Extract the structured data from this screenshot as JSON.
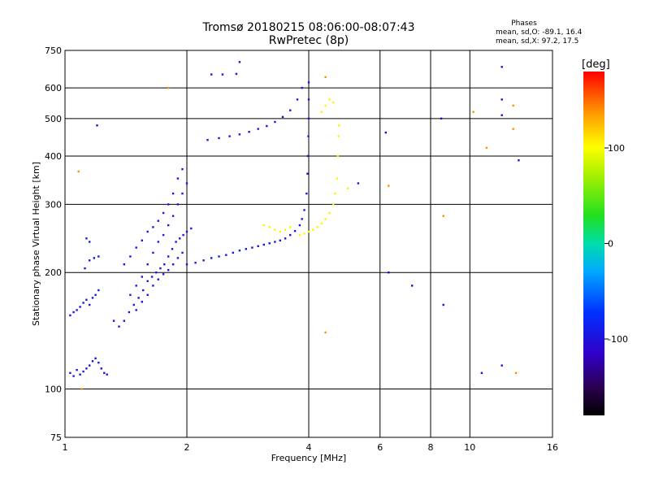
{
  "chart_data": {
    "type": "scatter",
    "title": "Tromsø 20180215 08:06:00-08:07:43",
    "subtitle": "RwPretec (8p)",
    "xlabel": "Frequency [MHz]",
    "ylabel": "Stationary phase Virtual Height [km]",
    "x_scale": "log",
    "y_scale": "log",
    "xlim": [
      1,
      16
    ],
    "ylim": [
      75,
      750
    ],
    "x_ticks": [
      1,
      2,
      4,
      6,
      8,
      10,
      16
    ],
    "x_tick_labels": [
      "1",
      "2",
      "4",
      "6",
      "8",
      "10",
      "16"
    ],
    "y_ticks": [
      75,
      100,
      200,
      300,
      400,
      500,
      600,
      750
    ],
    "y_tick_labels": [
      "75",
      "100",
      "200",
      "300",
      "400",
      "500",
      "600",
      "750"
    ],
    "grid": true,
    "phase_stats": {
      "heading": "Phases",
      "line_o": "mean, sd,O: -89.1, 16.4",
      "line_x": "mean, sd,X:  97.2, 17.5"
    },
    "colorbar": {
      "unit_label": "[deg]",
      "range": [
        -180,
        180
      ],
      "ticks": [
        100,
        0,
        -100
      ],
      "tick_labels": [
        "100",
        "0",
        "-100"
      ]
    },
    "series": [
      {
        "mode": "O",
        "phase_deg": -95,
        "points": [
          [
            1.03,
            110
          ],
          [
            1.05,
            108
          ],
          [
            1.07,
            112
          ],
          [
            1.09,
            109
          ],
          [
            1.11,
            111
          ],
          [
            1.13,
            113
          ],
          [
            1.15,
            115
          ],
          [
            1.17,
            118
          ],
          [
            1.19,
            120
          ],
          [
            1.21,
            117
          ],
          [
            1.23,
            113
          ],
          [
            1.25,
            110
          ],
          [
            1.27,
            109
          ],
          [
            1.03,
            155
          ],
          [
            1.05,
            158
          ],
          [
            1.07,
            160
          ],
          [
            1.09,
            163
          ],
          [
            1.11,
            167
          ],
          [
            1.13,
            170
          ],
          [
            1.15,
            165
          ],
          [
            1.17,
            172
          ],
          [
            1.19,
            175
          ],
          [
            1.21,
            180
          ],
          [
            1.12,
            205
          ],
          [
            1.15,
            215
          ],
          [
            1.18,
            218
          ],
          [
            1.21,
            220
          ],
          [
            1.13,
            245
          ],
          [
            1.15,
            240
          ],
          [
            1.32,
            150
          ],
          [
            1.36,
            145
          ],
          [
            1.4,
            150
          ],
          [
            1.44,
            158
          ],
          [
            1.48,
            165
          ],
          [
            1.52,
            172
          ],
          [
            1.56,
            180
          ],
          [
            1.6,
            190
          ],
          [
            1.64,
            195
          ],
          [
            1.68,
            200
          ],
          [
            1.72,
            205
          ],
          [
            1.76,
            210
          ],
          [
            1.8,
            220
          ],
          [
            1.84,
            230
          ],
          [
            1.88,
            240
          ],
          [
            1.92,
            245
          ],
          [
            1.96,
            250
          ],
          [
            2.0,
            255
          ],
          [
            2.05,
            260
          ],
          [
            1.45,
            175
          ],
          [
            1.5,
            185
          ],
          [
            1.55,
            195
          ],
          [
            1.6,
            210
          ],
          [
            1.65,
            225
          ],
          [
            1.7,
            240
          ],
          [
            1.75,
            250
          ],
          [
            1.8,
            265
          ],
          [
            1.85,
            280
          ],
          [
            1.9,
            300
          ],
          [
            1.95,
            320
          ],
          [
            2.0,
            340
          ],
          [
            1.4,
            210
          ],
          [
            1.45,
            220
          ],
          [
            1.5,
            232
          ],
          [
            1.55,
            242
          ],
          [
            1.6,
            255
          ],
          [
            1.65,
            262
          ],
          [
            1.7,
            272
          ],
          [
            1.75,
            285
          ],
          [
            1.8,
            300
          ],
          [
            1.85,
            320
          ],
          [
            1.9,
            350
          ],
          [
            1.95,
            370
          ],
          [
            1.5,
            160
          ],
          [
            1.55,
            168
          ],
          [
            1.6,
            175
          ],
          [
            1.65,
            185
          ],
          [
            1.7,
            192
          ],
          [
            1.75,
            198
          ],
          [
            1.8,
            203
          ],
          [
            1.85,
            210
          ],
          [
            1.9,
            218
          ],
          [
            1.95,
            225
          ],
          [
            2.0,
            210
          ],
          [
            2.1,
            212
          ],
          [
            2.2,
            215
          ],
          [
            2.3,
            218
          ],
          [
            2.4,
            220
          ],
          [
            2.5,
            222
          ],
          [
            2.6,
            225
          ],
          [
            2.7,
            228
          ],
          [
            2.8,
            230
          ],
          [
            2.9,
            232
          ],
          [
            3.0,
            234
          ],
          [
            3.1,
            236
          ],
          [
            3.2,
            238
          ],
          [
            3.3,
            240
          ],
          [
            3.4,
            242
          ],
          [
            3.5,
            245
          ],
          [
            3.6,
            250
          ],
          [
            3.7,
            256
          ],
          [
            3.8,
            265
          ],
          [
            3.85,
            275
          ],
          [
            3.9,
            290
          ],
          [
            3.95,
            320
          ],
          [
            3.97,
            360
          ],
          [
            3.98,
            400
          ],
          [
            3.99,
            450
          ],
          [
            4.0,
            500
          ],
          [
            4.0,
            560
          ],
          [
            4.0,
            620
          ],
          [
            2.25,
            440
          ],
          [
            2.4,
            445
          ],
          [
            2.55,
            450
          ],
          [
            2.7,
            455
          ],
          [
            2.85,
            462
          ],
          [
            3.0,
            470
          ],
          [
            3.15,
            478
          ],
          [
            3.3,
            490
          ],
          [
            3.45,
            505
          ],
          [
            3.6,
            525
          ],
          [
            3.75,
            560
          ],
          [
            3.85,
            600
          ],
          [
            2.3,
            650
          ],
          [
            2.45,
            650
          ],
          [
            2.65,
            652
          ]
        ]
      },
      {
        "mode": "X",
        "phase_deg": 105,
        "points": [
          [
            3.1,
            265
          ],
          [
            3.2,
            262
          ],
          [
            3.3,
            258
          ],
          [
            3.4,
            255
          ],
          [
            3.5,
            258
          ],
          [
            3.6,
            262
          ],
          [
            3.8,
            250
          ],
          [
            3.9,
            252
          ],
          [
            4.0,
            255
          ],
          [
            4.1,
            258
          ],
          [
            4.2,
            262
          ],
          [
            4.3,
            268
          ],
          [
            4.4,
            275
          ],
          [
            4.5,
            285
          ],
          [
            4.6,
            300
          ],
          [
            4.65,
            320
          ],
          [
            4.7,
            350
          ],
          [
            4.72,
            400
          ],
          [
            4.74,
            450
          ],
          [
            4.75,
            480
          ],
          [
            4.4,
            540
          ],
          [
            4.5,
            560
          ],
          [
            4.6,
            550
          ],
          [
            4.3,
            520
          ],
          [
            5.0,
            330
          ]
        ]
      },
      {
        "mode": "scattered",
        "phase_deg": -110,
        "points": [
          [
            6.2,
            460
          ],
          [
            6.3,
            200
          ],
          [
            7.2,
            185
          ],
          [
            8.5,
            500
          ],
          [
            8.6,
            165
          ],
          [
            10.7,
            110
          ],
          [
            12.0,
            510
          ],
          [
            12.0,
            560
          ],
          [
            12.0,
            680
          ],
          [
            13.2,
            390
          ],
          [
            12.0,
            115
          ],
          [
            1.2,
            480
          ],
          [
            2.7,
            700
          ],
          [
            5.3,
            340
          ]
        ]
      },
      {
        "mode": "scattered",
        "phase_deg": 140,
        "points": [
          [
            4.4,
            140
          ],
          [
            4.4,
            640
          ],
          [
            1.1,
            100
          ],
          [
            1.8,
            600
          ],
          [
            10.2,
            520
          ],
          [
            12.8,
            540
          ],
          [
            13.0,
            110
          ],
          [
            6.3,
            335
          ],
          [
            8.6,
            280
          ],
          [
            11.0,
            420
          ],
          [
            12.8,
            470
          ],
          [
            1.08,
            365
          ]
        ]
      }
    ]
  }
}
